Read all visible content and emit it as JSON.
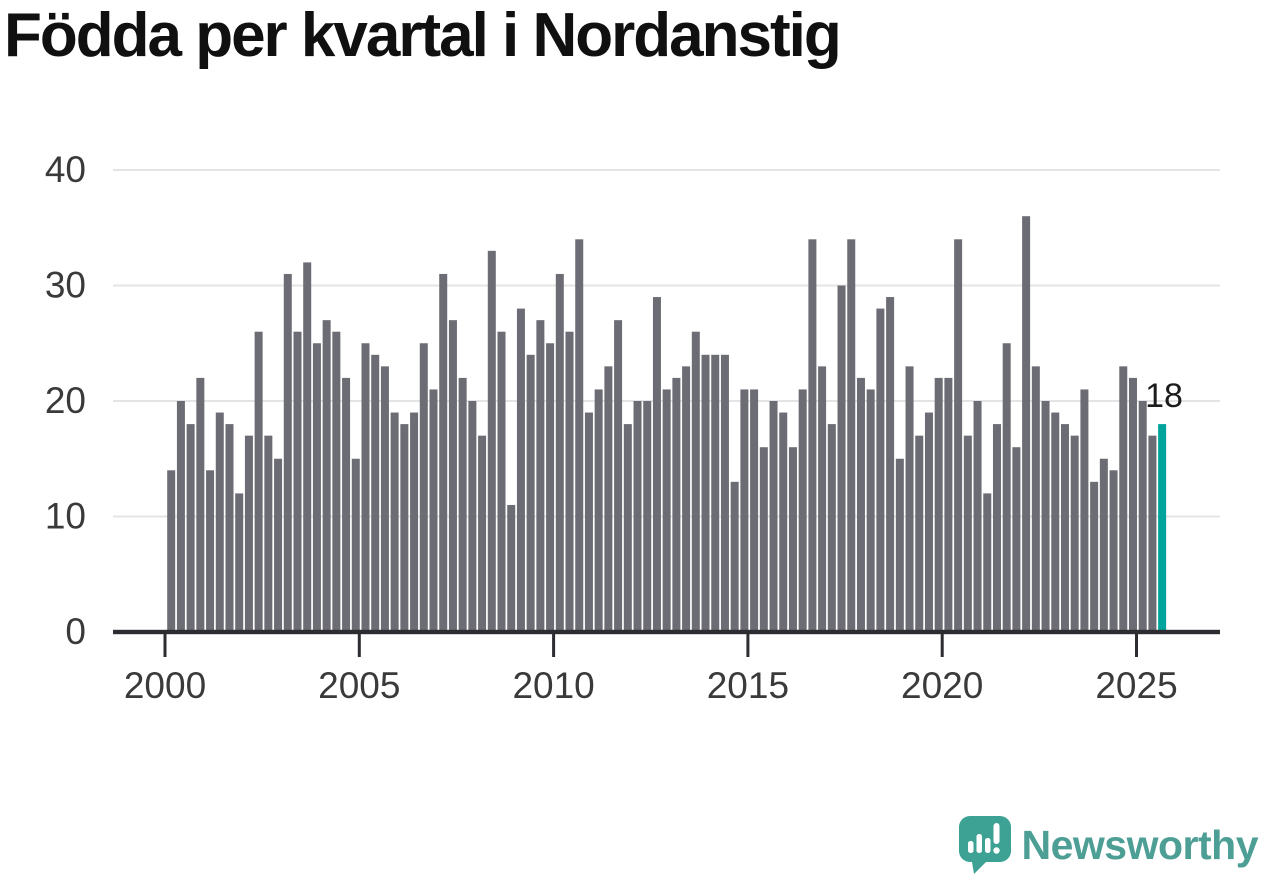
{
  "title": "Födda per kvartal i Nordanstig",
  "annotation": {
    "label": "18"
  },
  "branding": {
    "name": "Newsworthy",
    "icon": "newsworthy-speech-bubble-chart-icon"
  },
  "colors": {
    "page_bg": "#ffffff",
    "bar": "#6c6c74",
    "highlight": "#00a49c",
    "grid": "#e4e4e6",
    "axis": "#2d2d31",
    "tick_label": "#3a3a3a",
    "title": "#101010",
    "annotation": "#1c1c1c",
    "brand_bubble": "#3da294",
    "brand_text": "#4d9e95"
  },
  "chart_data": {
    "type": "bar",
    "title": "Födda per kvartal i Nordanstig",
    "xlabel": "",
    "ylabel": "",
    "ylim": [
      0,
      40
    ],
    "yticks": [
      0,
      10,
      20,
      30,
      40
    ],
    "xticks": [
      "2000",
      "2005",
      "2010",
      "2015",
      "2020",
      "2025"
    ],
    "grid": "horizontal",
    "legend": "none",
    "highlight_last_bar": true,
    "last_bar_label": "18",
    "series": [
      {
        "name": "Födda per kvartal",
        "years": [
          {
            "year": 2000,
            "values": [
              14,
              20,
              18,
              22
            ]
          },
          {
            "year": 2001,
            "values": [
              14,
              19,
              18,
              12
            ]
          },
          {
            "year": 2002,
            "values": [
              17,
              26,
              17,
              15
            ]
          },
          {
            "year": 2003,
            "values": [
              31,
              26,
              32,
              25
            ]
          },
          {
            "year": 2004,
            "values": [
              27,
              26,
              22,
              15
            ]
          },
          {
            "year": 2005,
            "values": [
              25,
              24,
              23,
              19
            ]
          },
          {
            "year": 2006,
            "values": [
              18,
              19,
              25,
              21
            ]
          },
          {
            "year": 2007,
            "values": [
              31,
              27,
              22,
              20
            ]
          },
          {
            "year": 2008,
            "values": [
              17,
              33,
              26,
              11
            ]
          },
          {
            "year": 2009,
            "values": [
              28,
              24,
              27,
              25
            ]
          },
          {
            "year": 2010,
            "values": [
              31,
              26,
              34,
              19
            ]
          },
          {
            "year": 2011,
            "values": [
              21,
              23,
              27,
              18
            ]
          },
          {
            "year": 2012,
            "values": [
              20,
              20,
              29,
              21
            ]
          },
          {
            "year": 2013,
            "values": [
              22,
              23,
              26,
              24
            ]
          },
          {
            "year": 2014,
            "values": [
              24,
              24,
              13,
              21
            ]
          },
          {
            "year": 2015,
            "values": [
              21,
              16,
              20,
              19
            ]
          },
          {
            "year": 2016,
            "values": [
              16,
              21,
              34,
              23
            ]
          },
          {
            "year": 2017,
            "values": [
              18,
              30,
              34,
              22
            ]
          },
          {
            "year": 2018,
            "values": [
              21,
              28,
              29,
              15
            ]
          },
          {
            "year": 2019,
            "values": [
              23,
              17,
              19,
              22
            ]
          },
          {
            "year": 2020,
            "values": [
              22,
              34,
              17,
              20
            ]
          },
          {
            "year": 2021,
            "values": [
              12,
              18,
              25,
              16
            ]
          },
          {
            "year": 2022,
            "values": [
              36,
              23,
              20,
              19
            ]
          },
          {
            "year": 2023,
            "values": [
              18,
              17,
              21,
              13
            ]
          },
          {
            "year": 2024,
            "values": [
              15,
              14,
              23,
              22
            ]
          },
          {
            "year": 2025,
            "values": [
              20,
              17,
              18
            ]
          }
        ]
      }
    ]
  }
}
